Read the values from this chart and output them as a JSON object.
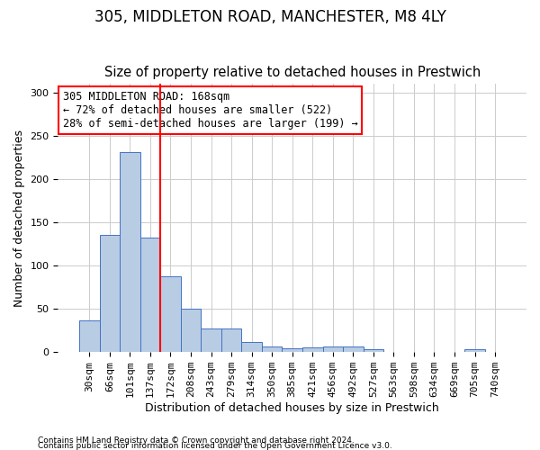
{
  "title1": "305, MIDDLETON ROAD, MANCHESTER, M8 4LY",
  "title2": "Size of property relative to detached houses in Prestwich",
  "xlabel": "Distribution of detached houses by size in Prestwich",
  "ylabel": "Number of detached properties",
  "footnote1": "Contains HM Land Registry data © Crown copyright and database right 2024.",
  "footnote2": "Contains public sector information licensed under the Open Government Licence v3.0.",
  "bins": [
    "30sqm",
    "66sqm",
    "101sqm",
    "137sqm",
    "172sqm",
    "208sqm",
    "243sqm",
    "279sqm",
    "314sqm",
    "350sqm",
    "385sqm",
    "421sqm",
    "456sqm",
    "492sqm",
    "527sqm",
    "563sqm",
    "598sqm",
    "634sqm",
    "669sqm",
    "705sqm",
    "740sqm"
  ],
  "values": [
    37,
    135,
    231,
    132,
    88,
    50,
    27,
    27,
    12,
    6,
    4,
    5,
    6,
    6,
    3,
    0,
    0,
    0,
    0,
    3,
    0
  ],
  "bar_color": "#b8cce4",
  "bar_edge_color": "#4472c4",
  "annotation_text": "305 MIDDLETON ROAD: 168sqm\n← 72% of detached houses are smaller (522)\n28% of semi-detached houses are larger (199) →",
  "annotation_box_color": "white",
  "annotation_box_edge_color": "red",
  "vline_color": "red",
  "vline_x": 3.5,
  "ylim": [
    0,
    310
  ],
  "yticks": [
    0,
    50,
    100,
    150,
    200,
    250,
    300
  ],
  "background_color": "white",
  "grid_color": "#cccccc",
  "title1_fontsize": 12,
  "title2_fontsize": 10.5,
  "axis_label_fontsize": 9,
  "tick_fontsize": 8,
  "annotation_fontsize": 8.5,
  "footnote_fontsize": 6.5
}
